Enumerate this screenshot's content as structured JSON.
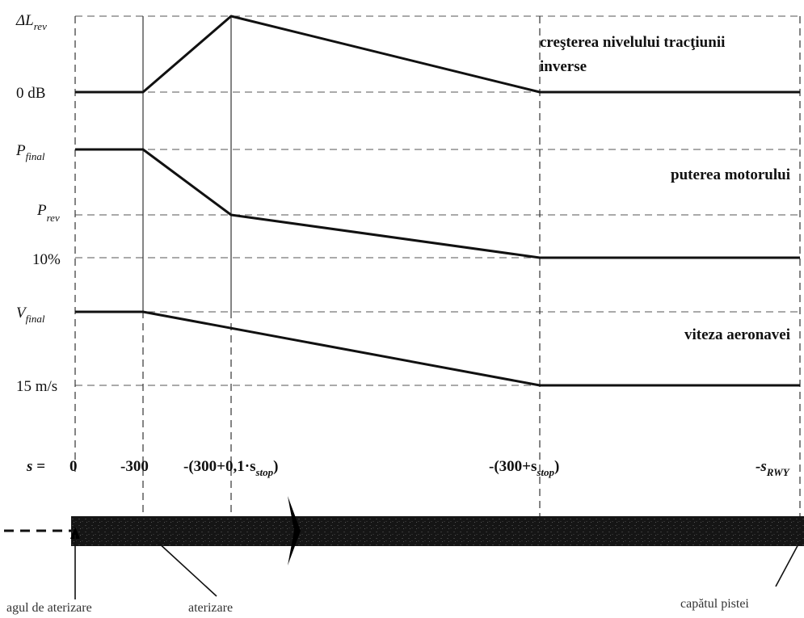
{
  "panels": [
    {
      "title_line1": "creşterea nivelului tracţiunii",
      "title_line2": "inverse"
    },
    {
      "title": "puterea motorului"
    },
    {
      "title": "viteza aeronavei"
    }
  ],
  "y_labels": {
    "delta_l_main": "ΔL",
    "delta_l_sub": "rev",
    "zero_db": "0 dB",
    "p_final_main": "P",
    "p_final_sub": "final",
    "p_rev_main": "P",
    "p_rev_sub": "rev",
    "ten_percent": "10%",
    "v_final_main": "V",
    "v_final_sub": "final",
    "fifteen_ms": "15 m/s"
  },
  "s_axis": {
    "s_label": "s =",
    "zero": "0",
    "minus300": "-300",
    "mid_main": "-(300+0,1·s",
    "mid_sub": "stop",
    "mid_close": ")",
    "stop_main": "-(300+s",
    "stop_sub": "stop",
    "stop_close": ")",
    "rwy_main": "-s",
    "rwy_sub": "RWY"
  },
  "runway_labels": {
    "left": "agul de aterizare",
    "middle": "aterizare",
    "right": "capătul pistei"
  },
  "colors": {
    "line": "#111111",
    "runway": "#1a1a1a",
    "grid": "#444444"
  }
}
